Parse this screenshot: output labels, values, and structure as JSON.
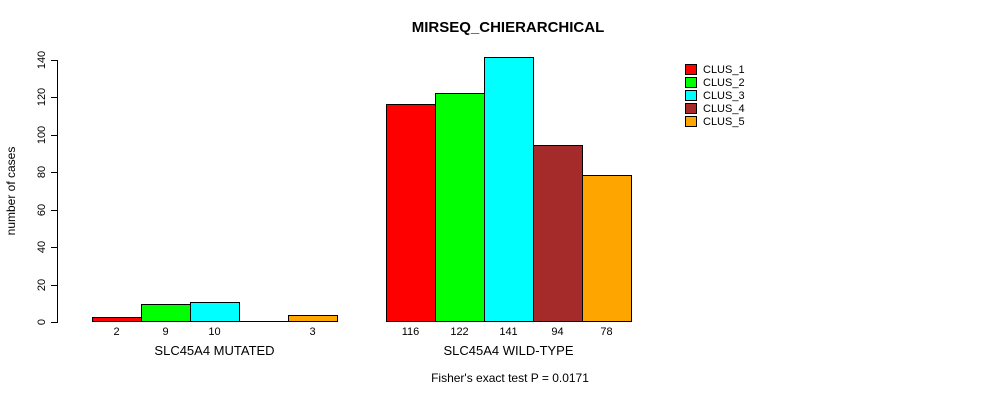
{
  "chart_data": {
    "type": "bar",
    "title": "MIRSEQ_CHIERARCHICAL",
    "ylabel": "number of cases",
    "xlabel": "",
    "footnote": "Fisher's exact test P = 0.0171",
    "ylim": [
      0,
      140
    ],
    "yticks": [
      0,
      20,
      40,
      60,
      80,
      100,
      120,
      140
    ],
    "grid": false,
    "background": "#ffffff",
    "legend_position": "right",
    "categories": [
      "SLC45A4 MUTATED",
      "SLC45A4 WILD-TYPE"
    ],
    "series": [
      {
        "name": "CLUS_1",
        "color": "#FF0000",
        "values": [
          2,
          116
        ]
      },
      {
        "name": "CLUS_2",
        "color": "#00FF00",
        "values": [
          9,
          122
        ]
      },
      {
        "name": "CLUS_3",
        "color": "#00FFFF",
        "values": [
          10,
          141
        ]
      },
      {
        "name": "CLUS_4",
        "color": "#A52A2A",
        "values": [
          0,
          94
        ]
      },
      {
        "name": "CLUS_5",
        "color": "#FFA500",
        "values": [
          3,
          78
        ]
      }
    ],
    "bar_value_labels_shown": true,
    "zero_bars_drawn_as_line": true
  }
}
